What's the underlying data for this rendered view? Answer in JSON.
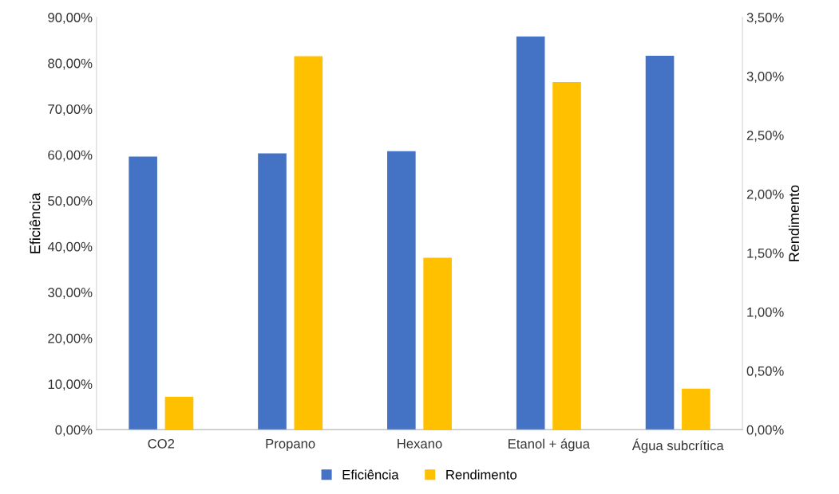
{
  "chart_data": {
    "type": "bar",
    "categories": [
      "CO2",
      "Propano",
      "Hexano",
      "Etanol + água",
      "Água subcrítica"
    ],
    "ylabel": "Eficiência",
    "y2label": "Rendimento",
    "series": [
      {
        "name": "Eficiência",
        "color": "#4472c4",
        "values": [
          59.6,
          60.3,
          60.8,
          85.8,
          81.6
        ]
      },
      {
        "name": "Rendimento",
        "color": "#ffc000",
        "axis": "y2",
        "values": [
          0.28,
          3.17,
          1.46,
          2.95,
          0.35
        ]
      }
    ],
    "ylim": [
      0,
      90
    ],
    "yticks": [
      {
        "value": 0,
        "label": "0,00%"
      },
      {
        "value": 10,
        "label": "10,00%"
      },
      {
        "value": 20,
        "label": "20,00%"
      },
      {
        "value": 30,
        "label": "30,00%"
      },
      {
        "value": 40,
        "label": "40,00%"
      },
      {
        "value": 50,
        "label": "50,00%"
      },
      {
        "value": 60,
        "label": "60,00%"
      },
      {
        "value": 70,
        "label": "70,00%"
      },
      {
        "value": 80,
        "label": "80,00%"
      },
      {
        "value": 90,
        "label": "90,00%"
      }
    ],
    "y2lim": [
      0,
      3.5
    ],
    "y2ticks": [
      {
        "value": 0,
        "label": "0,00%"
      },
      {
        "value": 0.5,
        "label": "0,50%"
      },
      {
        "value": 1,
        "label": "1,00%"
      },
      {
        "value": 1.5,
        "label": "1,50%"
      },
      {
        "value": 2,
        "label": "2,00%"
      },
      {
        "value": 2.5,
        "label": "2,50%"
      },
      {
        "value": 3,
        "label": "3,00%"
      },
      {
        "value": 3.5,
        "label": "3,50%"
      }
    ],
    "legend": "bottom",
    "grid": false
  }
}
